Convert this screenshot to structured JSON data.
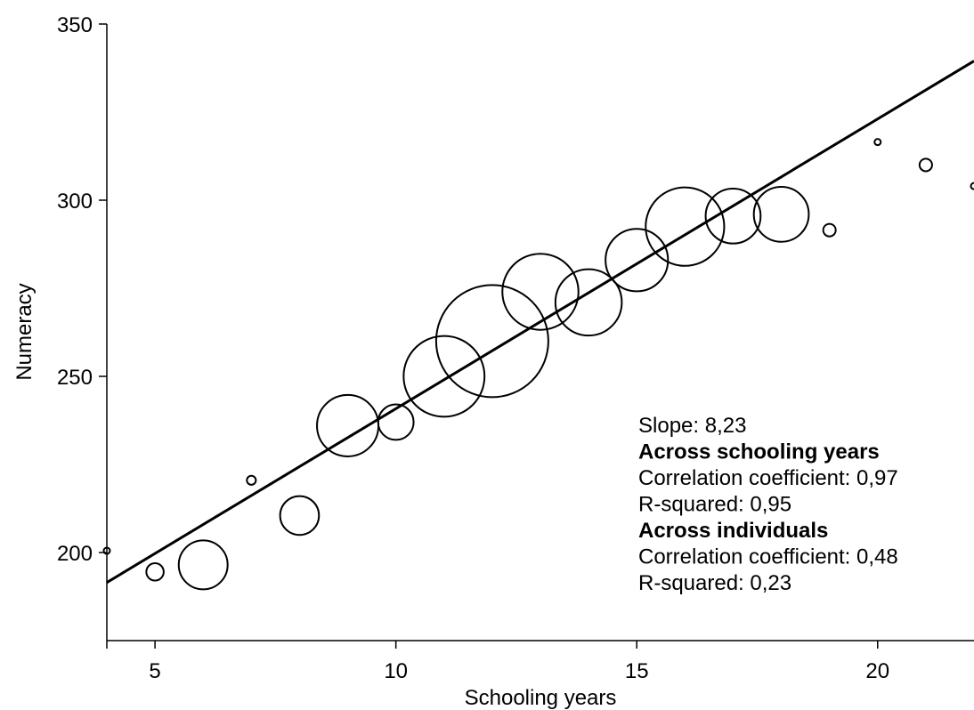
{
  "chart_data": {
    "type": "scatter",
    "xlabel": "Schooling years",
    "ylabel": "Numeracy",
    "xlim": [
      4,
      22
    ],
    "ylim": [
      175,
      350
    ],
    "xticks": [
      5,
      10,
      15,
      20
    ],
    "yticks": [
      200,
      250,
      300,
      350
    ],
    "bubble_size_meaning": "relative number of individuals (estimated from circle size)",
    "points": [
      {
        "x": 4,
        "y": 200.5,
        "size": 0.0025
      },
      {
        "x": 5,
        "y": 194.5,
        "size": 0.024
      },
      {
        "x": 6,
        "y": 196.5,
        "size": 0.19
      },
      {
        "x": 7,
        "y": 220.5,
        "size": 0.0064
      },
      {
        "x": 8,
        "y": 210.5,
        "size": 0.12
      },
      {
        "x": 9,
        "y": 236,
        "size": 0.3
      },
      {
        "x": 10,
        "y": 237,
        "size": 0.1
      },
      {
        "x": 11,
        "y": 250,
        "size": 0.52
      },
      {
        "x": 12,
        "y": 260,
        "size": 1.0
      },
      {
        "x": 13,
        "y": 274,
        "size": 0.46
      },
      {
        "x": 14,
        "y": 271,
        "size": 0.35
      },
      {
        "x": 15,
        "y": 283,
        "size": 0.31
      },
      {
        "x": 16,
        "y": 292.5,
        "size": 0.49
      },
      {
        "x": 17,
        "y": 295.5,
        "size": 0.24
      },
      {
        "x": 18,
        "y": 296,
        "size": 0.24
      },
      {
        "x": 19,
        "y": 291.5,
        "size": 0.0125
      },
      {
        "x": 20,
        "y": 316.5,
        "size": 0.0023
      },
      {
        "x": 21,
        "y": 310,
        "size": 0.0125
      },
      {
        "x": 22,
        "y": 304,
        "size": 0.0015
      }
    ],
    "fit_line": {
      "x": [
        4,
        22
      ],
      "y": [
        191.5,
        339.5
      ]
    },
    "annotations": [
      {
        "text": "Slope: 8,23",
        "bold": false
      },
      {
        "text": "Across schooling years",
        "bold": true
      },
      {
        "text": "Correlation coefficient: 0,97",
        "bold": false
      },
      {
        "text": "R-squared: 0,95",
        "bold": false
      },
      {
        "text": "Across individuals",
        "bold": true
      },
      {
        "text": "Correlation coefficient: 0,48",
        "bold": false
      },
      {
        "text": "R-squared: 0,23",
        "bold": false
      }
    ]
  }
}
